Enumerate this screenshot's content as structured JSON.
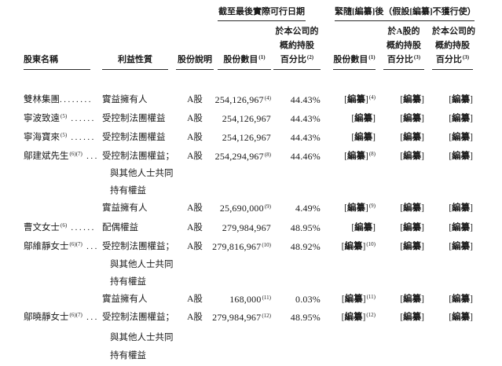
{
  "document": {
    "background": "#ffffff",
    "text_color": "#1a1a1a",
    "redacted_label": "編纂",
    "header": {
      "group_lpd": {
        "title": "截至最後實際可行日期"
      },
      "group_after": {
        "title": "緊隨[編纂]後（假設[編纂]不獲行使）"
      },
      "columns": {
        "shareholder": "股東名稱",
        "nature": "利益性質",
        "share_class": "股份說明",
        "shares_lpd": {
          "label": "股份數目",
          "sup": "(1)"
        },
        "pct_company_lpd": {
          "line1": "於本公司的",
          "line2": "概約持股",
          "line3": "百分比",
          "sup": "(2)"
        },
        "shares_after": {
          "label": "股份數目",
          "sup": "(1)"
        },
        "pct_a_after": {
          "line1": "於A股的",
          "line2": "概約持股",
          "line3": "百分比",
          "sup": "(3)"
        },
        "pct_company_after": {
          "line1": "於本公司的",
          "line2": "概約持股",
          "line3": "百分比",
          "sup": "(3)"
        }
      }
    },
    "rows": [
      {
        "name": "雙林集團",
        "name_sup": "",
        "dots": "........",
        "nature": "實益擁有人",
        "share_class": "A股",
        "shares": "254,126,967",
        "shares_sup": "(4)",
        "pct": "44.43%",
        "red_sup": "(4)"
      },
      {
        "name": "寧波致遠",
        "name_sup": "(5)",
        "dots": " ......",
        "nature": "受控制法團權益",
        "share_class": "A股",
        "shares": "254,126,967",
        "shares_sup": "",
        "pct": "44.43%",
        "red_sup": ""
      },
      {
        "name": "寧海寶來",
        "name_sup": "(5)",
        "dots": " ......",
        "nature": "受控制法團權益",
        "share_class": "A股",
        "shares": "254,126,967",
        "shares_sup": "",
        "pct": "44.43%",
        "red_sup": ""
      },
      {
        "name": "鄔建斌先生",
        "name_sup": "(6)(7)",
        "dots": " ...",
        "nature": "受控制法團權益；",
        "share_class": "A股",
        "shares": "254,294,967",
        "shares_sup": "(8)",
        "pct": "44.46%",
        "red_sup": "(8)"
      },
      {
        "nature_cont": "與其他人士共同"
      },
      {
        "nature_cont": "持有權益"
      },
      {
        "nature": "實益擁有人",
        "share_class": "A股",
        "shares": "25,690,000",
        "shares_sup": "(9)",
        "pct": "4.49%",
        "red_sup": "(9)"
      },
      {
        "name": "曹文女士",
        "name_sup": "(6)",
        "dots": " ......",
        "nature": "配偶權益",
        "share_class": "A股",
        "shares": "279,984,967",
        "shares_sup": "",
        "pct": "48.95%",
        "red_sup": ""
      },
      {
        "name": "鄔維靜女士",
        "name_sup": "(6)(7)",
        "dots": " ...",
        "nature": "受控制法團權益；",
        "share_class": "A股",
        "shares": "279,816,967",
        "shares_sup": "(10)",
        "pct": "48.92%",
        "red_sup": "(10)"
      },
      {
        "nature_cont": "與其他人士共同"
      },
      {
        "nature_cont": "持有權益"
      },
      {
        "nature": "實益擁有人",
        "share_class": "A股",
        "shares": "168,000",
        "shares_sup": "(11)",
        "pct": "0.03%",
        "red_sup": "(11)"
      },
      {
        "name": "鄔曉靜女士",
        "name_sup": "(6)(7)",
        "dots": " ...",
        "nature": "受控制法團權益；",
        "share_class": "A股",
        "shares": "279,984,967",
        "shares_sup": "(12)",
        "pct": "48.95%",
        "red_sup": "(12)"
      },
      {
        "nature_cont": "與其他人士共同"
      },
      {
        "nature_cont": "持有權益"
      }
    ]
  }
}
